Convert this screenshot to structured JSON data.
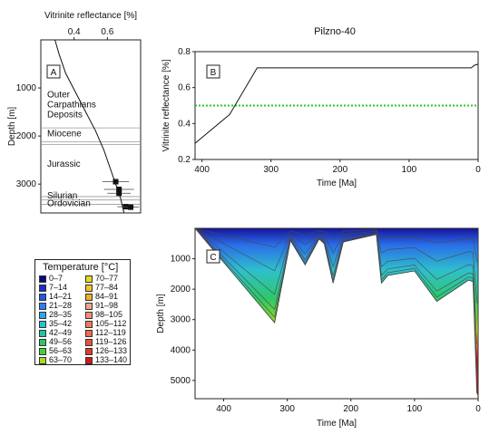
{
  "figure": {
    "title": "Pilzno-40"
  },
  "chart_data": [
    {
      "id": "A",
      "type": "line",
      "panel_label": "A",
      "xlabel": "Vitrinite reflectance [%]",
      "ylabel": "Depth [m]",
      "xlim": [
        0.2,
        0.8
      ],
      "ylim": [
        0,
        3600
      ],
      "xticks": [
        0.4,
        0.6
      ],
      "yticks": [
        1000,
        2000,
        3000
      ],
      "series": [
        {
          "kind": "curve",
          "x": [
            0.285,
            0.31,
            0.35,
            0.41,
            0.47,
            0.53,
            0.58,
            0.62,
            0.655,
            0.68,
            0.7
          ],
          "y": [
            0,
            300,
            700,
            1100,
            1500,
            1900,
            2300,
            2700,
            3050,
            3300,
            3600
          ]
        },
        {
          "kind": "measurements",
          "points": [
            {
              "x": 0.65,
              "y": 2950,
              "err": 0.08
            },
            {
              "x": 0.67,
              "y": 3110,
              "err": 0.09
            },
            {
              "x": 0.67,
              "y": 3190,
              "err": 0.07
            },
            {
              "x": 0.71,
              "y": 3470,
              "err": 0.05
            },
            {
              "x": 0.74,
              "y": 3480,
              "err": 0.05
            }
          ]
        }
      ],
      "boundaries": [
        1830,
        2120,
        2180,
        3260,
        3330,
        3420
      ],
      "units": [
        {
          "lines": [
            "Outer",
            "Carpathians",
            "Deposits"
          ],
          "depth": 1200
        },
        {
          "lines": [
            "Miocene"
          ],
          "depth": 2010
        },
        {
          "lines": [
            "Jurassic"
          ],
          "depth": 2640
        },
        {
          "lines": [
            "Silurian"
          ],
          "depth": 3300
        },
        {
          "lines": [
            "Ordovician"
          ],
          "depth": 3460
        }
      ]
    },
    {
      "id": "B",
      "type": "line",
      "panel_label": "B",
      "xlabel": "Time [Ma]",
      "ylabel": "Vitrinite reflectance [%]",
      "xlim": [
        410,
        0
      ],
      "ylim": [
        0.2,
        0.8
      ],
      "xticks": [
        400,
        300,
        200,
        100,
        0
      ],
      "yticks": [
        0.2,
        0.4,
        0.6,
        0.8
      ],
      "series": [
        {
          "kind": "maturity",
          "color": "#111111",
          "x": [
            410,
            360,
            320,
            160,
            10,
            5,
            0
          ],
          "y": [
            0.29,
            0.45,
            0.71,
            0.71,
            0.71,
            0.725,
            0.73
          ]
        },
        {
          "kind": "threshold",
          "color": "#22cc22",
          "x": [
            410,
            0
          ],
          "y": [
            0.5,
            0.5
          ]
        }
      ]
    },
    {
      "id": "C",
      "type": "area",
      "panel_label": "C",
      "xlabel": "Time [Ma]",
      "ylabel": "Depth [m]",
      "xlim": [
        445,
        0
      ],
      "ylim": [
        0,
        5600
      ],
      "xticks": [
        400,
        300,
        200,
        100,
        0
      ],
      "yticks": [
        1000,
        2000,
        3000,
        4000,
        5000
      ],
      "burial_bottom": [
        [
          445,
          0
        ],
        [
          320,
          3100
        ],
        [
          295,
          400
        ],
        [
          272,
          1200
        ],
        [
          250,
          350
        ],
        [
          242,
          500
        ],
        [
          228,
          1800
        ],
        [
          212,
          450
        ],
        [
          160,
          200
        ],
        [
          152,
          1800
        ],
        [
          142,
          1550
        ],
        [
          100,
          1400
        ],
        [
          65,
          2400
        ],
        [
          15,
          1700
        ],
        [
          8,
          1750
        ],
        [
          2,
          5400
        ],
        [
          0,
          5500
        ]
      ],
      "layer_fractions": [
        0.2,
        0.45,
        0.7,
        0.86,
        0.94
      ],
      "temperature_legend": {
        "title": "Temperature [°C]",
        "classes": [
          {
            "range": "0–7",
            "color": "#0a0a78"
          },
          {
            "range": "7–14",
            "color": "#1e2bc4"
          },
          {
            "range": "14–21",
            "color": "#1f55e0"
          },
          {
            "range": "21–28",
            "color": "#2a80ee"
          },
          {
            "range": "28–35",
            "color": "#2ea6f0"
          },
          {
            "range": "35–42",
            "color": "#22c4d2"
          },
          {
            "range": "42–49",
            "color": "#22c49c"
          },
          {
            "range": "49–56",
            "color": "#2ac864"
          },
          {
            "range": "56–63",
            "color": "#3ed23a"
          },
          {
            "range": "63–70",
            "color": "#a6dc22"
          },
          {
            "range": "70–77",
            "color": "#e6dc1e"
          },
          {
            "range": "77–84",
            "color": "#f4c61e"
          },
          {
            "range": "84–91",
            "color": "#f2ae24"
          },
          {
            "range": "91–98",
            "color": "#f3a48a"
          },
          {
            "range": "98–105",
            "color": "#f38e78"
          },
          {
            "range": "105–112",
            "color": "#f07c5e"
          },
          {
            "range": "112–119",
            "color": "#ee6a4c"
          },
          {
            "range": "119–126",
            "color": "#e9503a"
          },
          {
            "range": "126–133",
            "color": "#e43a28"
          },
          {
            "range": "133–140",
            "color": "#d81818"
          }
        ]
      }
    }
  ]
}
